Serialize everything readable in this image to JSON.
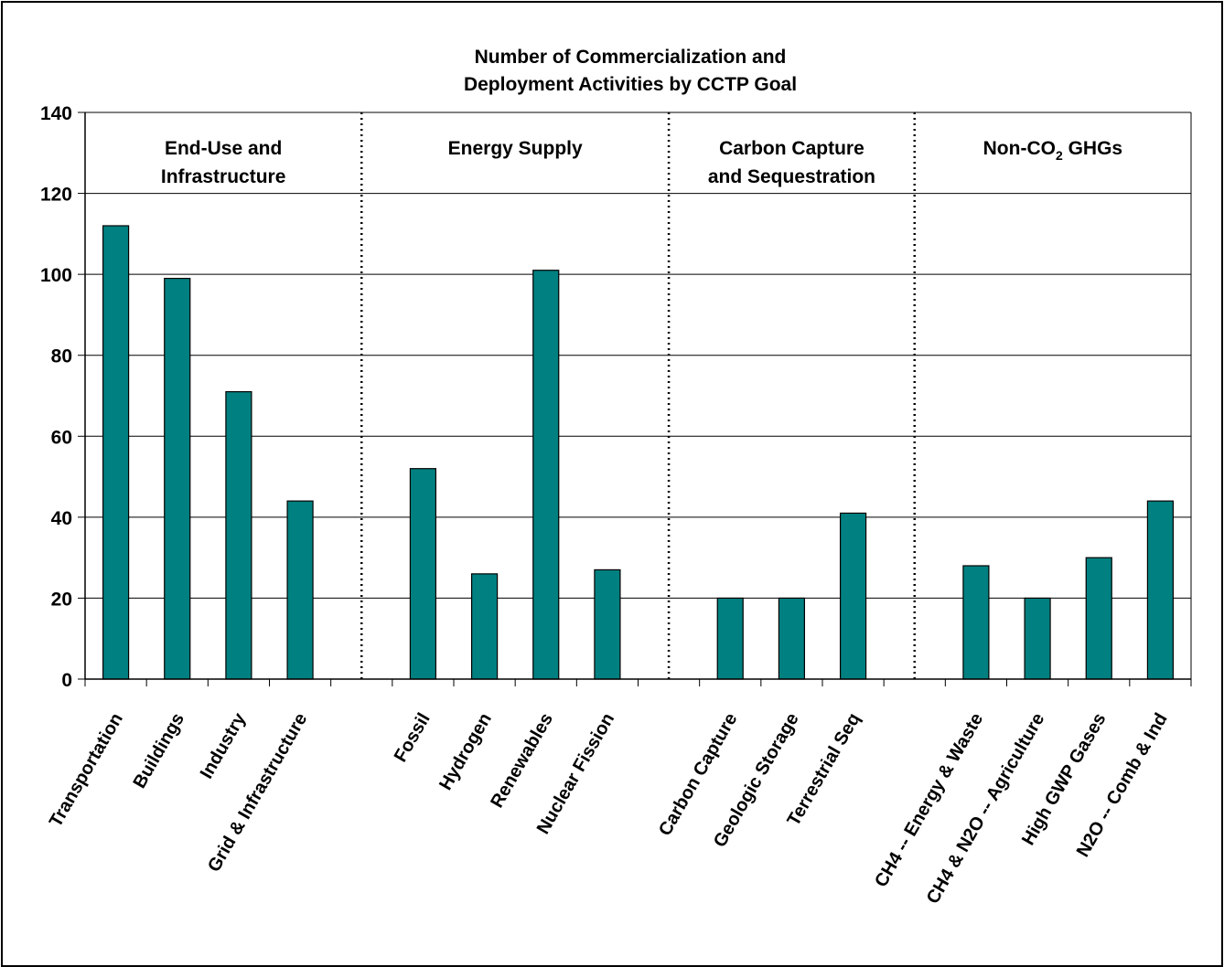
{
  "chart_data": {
    "type": "bar",
    "title_lines": [
      "Number of Commercialization and",
      "Deployment Activities by CCTP Goal"
    ],
    "xlabel": "",
    "ylabel": "",
    "ylim": [
      0,
      140
    ],
    "yticks": [
      0,
      20,
      40,
      60,
      80,
      100,
      120,
      140
    ],
    "grid": true,
    "bar_color": "#008080",
    "categories": [
      "Transportation",
      "Buildings",
      "Industry",
      "Grid & Infrastructure",
      "",
      "Fossil",
      "Hydrogen",
      "Renewables",
      "Nuclear Fission",
      "",
      "Carbon Capture",
      "Geologic Storage",
      "Terrestrial Seq",
      "",
      "CH4 -- Energy & Waste",
      "CH4 & N2O -- Agriculture",
      "High GWP Gases",
      "N2O -- Comb & Ind"
    ],
    "values": [
      112,
      99,
      71,
      44,
      null,
      52,
      26,
      101,
      27,
      null,
      20,
      20,
      41,
      null,
      28,
      20,
      30,
      44
    ],
    "groups": [
      {
        "lines": [
          "End-Use and",
          "Infrastructure"
        ]
      },
      {
        "lines": [
          "Energy Supply"
        ]
      },
      {
        "lines": [
          "Carbon Capture",
          "and Sequestration"
        ]
      },
      {
        "lines": [
          "Non-CO2 GHGs"
        ],
        "main": "Non-CO",
        "sub": "2",
        "tail": " GHGs"
      }
    ]
  }
}
